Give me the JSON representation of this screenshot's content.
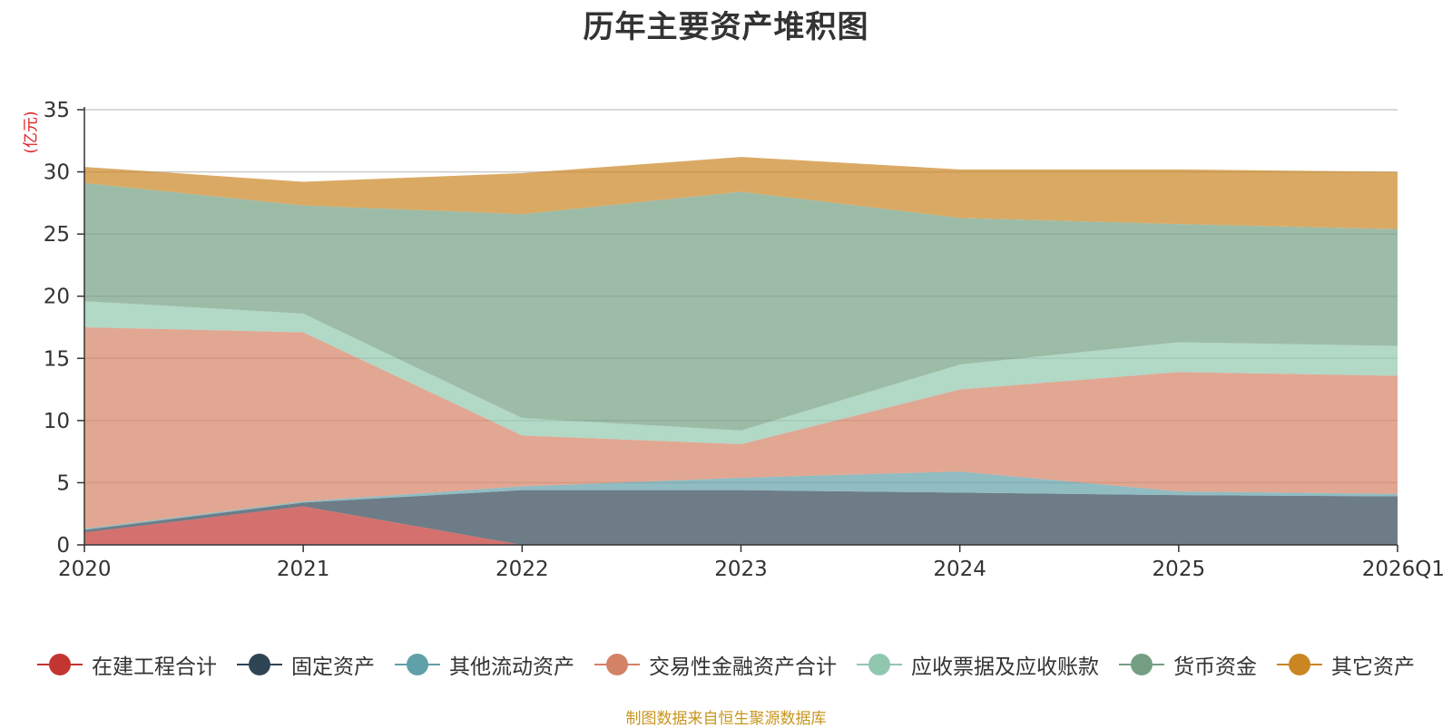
{
  "chart_data": {
    "type": "area",
    "stacked": true,
    "title": "历年主要资产堆积图",
    "ylabel": "(亿元)",
    "xlabel": "",
    "categories": [
      "2020",
      "2021",
      "2022",
      "2023",
      "2024",
      "2025",
      "2026Q1"
    ],
    "ylim": [
      0,
      35
    ],
    "yticks": [
      0,
      5,
      10,
      15,
      20,
      25,
      30,
      35
    ],
    "grid": true,
    "legend_position": "bottom",
    "series": [
      {
        "name": "在建工程合计",
        "color": "#c23531",
        "values": [
          1.0,
          3.1,
          0.0,
          0.0,
          0.0,
          0.0,
          0.0
        ]
      },
      {
        "name": "固定资产",
        "color": "#2f4554",
        "values": [
          0.2,
          0.3,
          4.4,
          4.4,
          4.2,
          4.0,
          3.9
        ]
      },
      {
        "name": "其他流动资产",
        "color": "#61a0a8",
        "values": [
          0.1,
          0.1,
          0.3,
          1.0,
          1.7,
          0.3,
          0.2
        ]
      },
      {
        "name": "交易性金融资产合计",
        "color": "#d48265",
        "values": [
          16.2,
          13.6,
          4.1,
          2.7,
          6.6,
          9.6,
          9.5
        ]
      },
      {
        "name": "应收票据及应收账款",
        "color": "#91c7ae",
        "values": [
          2.1,
          1.5,
          1.4,
          1.1,
          2.0,
          2.4,
          2.4
        ]
      },
      {
        "name": "货币资金",
        "color": "#749f83",
        "values": [
          9.5,
          8.7,
          16.4,
          19.2,
          11.8,
          9.5,
          9.4
        ]
      },
      {
        "name": "其它资产",
        "color": "#ca8622",
        "values": [
          1.3,
          1.9,
          3.3,
          2.8,
          3.9,
          4.4,
          4.6
        ]
      }
    ]
  },
  "source_note": "制图数据来自恒生聚源数据库"
}
